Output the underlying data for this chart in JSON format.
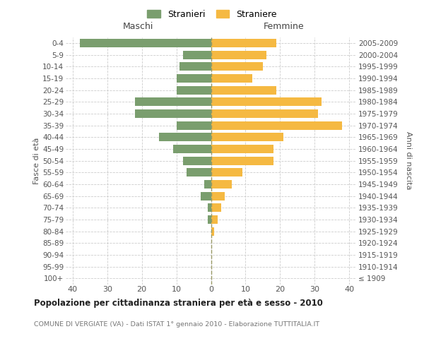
{
  "age_groups": [
    "100+",
    "95-99",
    "90-94",
    "85-89",
    "80-84",
    "75-79",
    "70-74",
    "65-69",
    "60-64",
    "55-59",
    "50-54",
    "45-49",
    "40-44",
    "35-39",
    "30-34",
    "25-29",
    "20-24",
    "15-19",
    "10-14",
    "5-9",
    "0-4"
  ],
  "birth_years": [
    "≤ 1909",
    "1910-1914",
    "1915-1919",
    "1920-1924",
    "1925-1929",
    "1930-1934",
    "1935-1939",
    "1940-1944",
    "1945-1949",
    "1950-1954",
    "1955-1959",
    "1960-1964",
    "1965-1969",
    "1970-1974",
    "1975-1979",
    "1980-1984",
    "1985-1989",
    "1990-1994",
    "1995-1999",
    "2000-2004",
    "2005-2009"
  ],
  "maschi": [
    0,
    0,
    0,
    0,
    0,
    1,
    1,
    3,
    2,
    7,
    8,
    11,
    15,
    10,
    22,
    22,
    10,
    10,
    9,
    8,
    38
  ],
  "femmine": [
    0,
    0,
    0,
    0,
    1,
    2,
    3,
    4,
    6,
    9,
    18,
    18,
    21,
    38,
    31,
    32,
    19,
    12,
    15,
    16,
    19
  ],
  "color_maschi": "#7a9e6e",
  "color_femmine": "#f5b942",
  "title": "Popolazione per cittadinanza straniera per età e sesso - 2010",
  "subtitle": "COMUNE DI VERGIATE (VA) - Dati ISTAT 1° gennaio 2010 - Elaborazione TUTTITALIA.IT",
  "label_maschi": "Stranieri",
  "label_femmine": "Straniere",
  "header_left": "Maschi",
  "header_right": "Femmine",
  "ylabel_left": "Fasce di età",
  "ylabel_right": "Anni di nascita",
  "xlim": 42,
  "background_color": "#ffffff",
  "grid_color": "#cccccc",
  "dashed_line_color": "#999966"
}
